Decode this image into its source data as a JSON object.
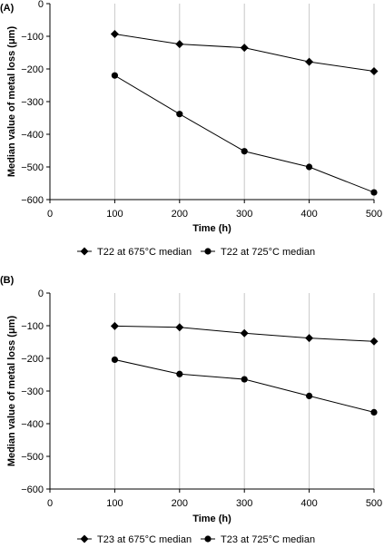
{
  "chart_data": [
    {
      "type": "line",
      "panel_label": "(A)",
      "xlabel": "Time (h)",
      "ylabel": "Median value of metal loss (μm)",
      "xlim": [
        0,
        500
      ],
      "ylim": [
        -600,
        0
      ],
      "x_ticks": [
        "0",
        "100",
        "200",
        "300",
        "400",
        "500"
      ],
      "y_ticks": [
        "0",
        "−100",
        "−200",
        "−300",
        "−400",
        "−500",
        "−600"
      ],
      "vertical_gridlines": true,
      "legend_position": "bottom",
      "x": [
        100,
        200,
        300,
        400,
        500
      ],
      "series": [
        {
          "name": "T22 at 675°C median",
          "marker": "diamond",
          "values": [
            -93,
            -124,
            -135,
            -178,
            -207
          ]
        },
        {
          "name": "T22 at 725°C median",
          "marker": "circle",
          "values": [
            -220,
            -338,
            -452,
            -500,
            -578
          ]
        }
      ]
    },
    {
      "type": "line",
      "panel_label": "(B)",
      "xlabel": "Time (h)",
      "ylabel": "Median value of metal loss (μm)",
      "xlim": [
        0,
        500
      ],
      "ylim": [
        -600,
        0
      ],
      "x_ticks": [
        "0",
        "100",
        "200",
        "300",
        "400",
        "500"
      ],
      "y_ticks": [
        "0",
        "−100",
        "−200",
        "−300",
        "−400",
        "−500",
        "−600"
      ],
      "vertical_gridlines": true,
      "legend_position": "bottom",
      "x": [
        100,
        200,
        300,
        400,
        500
      ],
      "series": [
        {
          "name": "T23 at 675°C median",
          "marker": "diamond",
          "values": [
            -101,
            -105,
            -123,
            -138,
            -148
          ]
        },
        {
          "name": "T23 at 725°C median",
          "marker": "circle",
          "values": [
            -204,
            -248,
            -264,
            -315,
            -365
          ]
        }
      ]
    }
  ]
}
